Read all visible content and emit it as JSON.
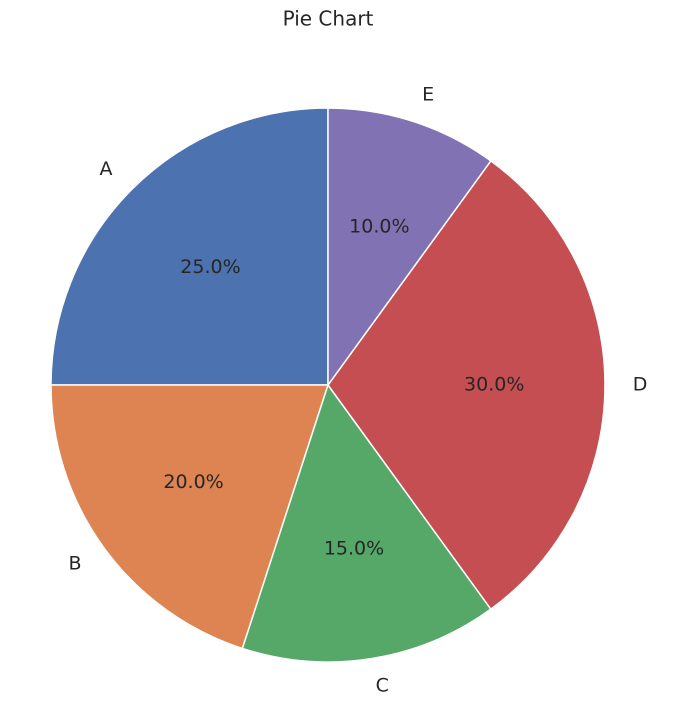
{
  "chart_data": {
    "type": "pie",
    "title": "Pie Chart",
    "categories": [
      "A",
      "B",
      "C",
      "D",
      "E"
    ],
    "values": [
      25,
      20,
      15,
      30,
      10
    ],
    "value_labels": [
      "25.0%",
      "20.0%",
      "15.0%",
      "30.0%",
      "10.0%"
    ],
    "colors": [
      "#4c72b0",
      "#dd8452",
      "#55a868",
      "#c44e52",
      "#8172b3"
    ]
  }
}
